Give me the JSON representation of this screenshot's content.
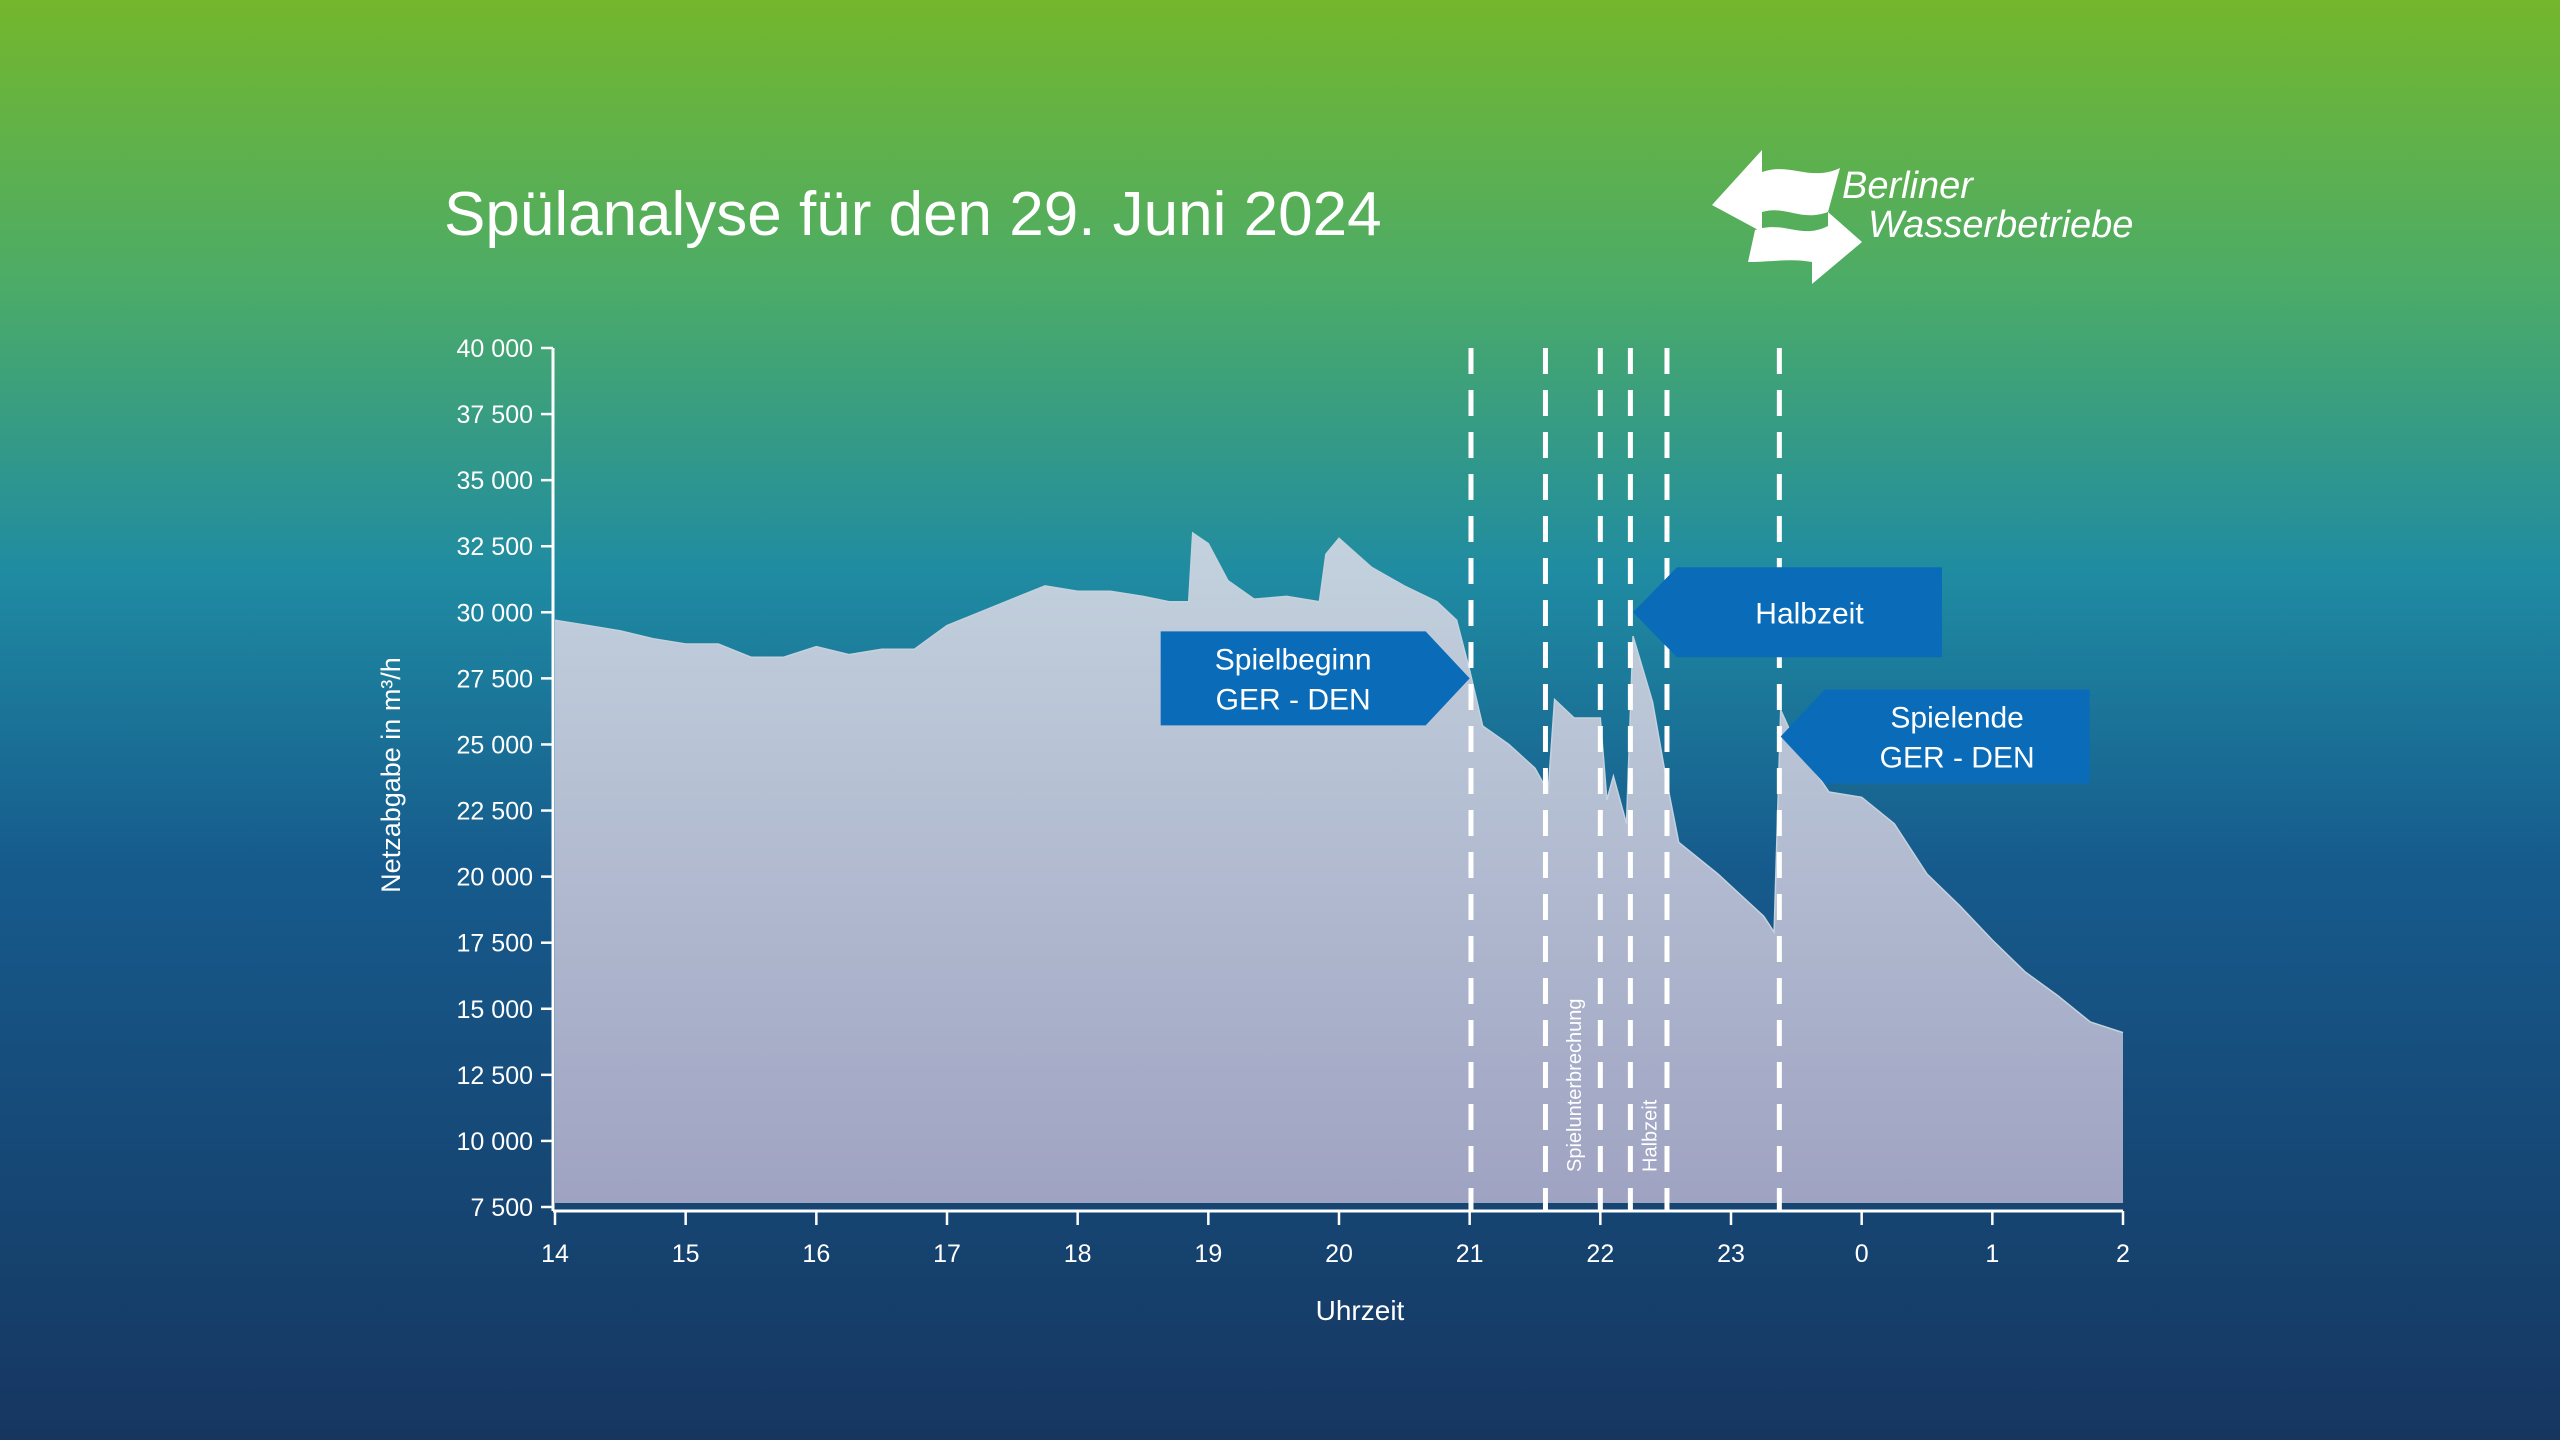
{
  "chart_data": {
    "type": "area",
    "title": "Spülanalyse für den 29. Juni 2024",
    "logo": [
      "Berliner",
      "Wasserbetriebe"
    ],
    "xlabel": "Uhrzeit",
    "ylabel": "Netzabgabe in m³/h",
    "x": [
      14,
      14.25,
      14.5,
      14.75,
      15,
      15.25,
      15.5,
      15.75,
      16,
      16.25,
      16.5,
      16.75,
      17,
      17.25,
      17.5,
      17.75,
      18,
      18.25,
      18.5,
      18.7,
      18.85,
      18.88,
      19,
      19.15,
      19.35,
      19.6,
      19.85,
      19.9,
      20,
      20.25,
      20.5,
      20.75,
      20.9,
      21,
      21.1,
      21.3,
      21.5,
      21.6,
      21.65,
      21.8,
      22,
      22.05,
      22.1,
      22.2,
      22.25,
      22.4,
      22.5,
      22.6,
      22.9,
      23.25,
      23.33,
      23.38,
      23.5,
      23.75,
      24,
      24.25,
      24.5,
      24.75,
      25,
      25.25,
      25.5,
      25.75,
      26
    ],
    "values": [
      29700,
      29500,
      29300,
      29000,
      28800,
      28800,
      28300,
      28300,
      28700,
      28400,
      28600,
      28600,
      29500,
      30000,
      30500,
      31000,
      30800,
      30800,
      30600,
      30400,
      30400,
      33000,
      32600,
      31200,
      30500,
      30600,
      30400,
      32200,
      32800,
      31700,
      31000,
      30400,
      29700,
      27800,
      25700,
      25000,
      24100,
      23200,
      26700,
      26000,
      26000,
      22900,
      23800,
      22000,
      29100,
      26600,
      23800,
      21300,
      20100,
      18500,
      17900,
      26300,
      25000,
      23200,
      23000,
      22000,
      20100,
      18900,
      17600,
      16400,
      15500,
      14500,
      14100
    ],
    "xlim": [
      14,
      26
    ],
    "xticks": [
      14,
      15,
      16,
      17,
      18,
      19,
      20,
      21,
      22,
      23,
      {
        "value": 24,
        "label": "0"
      },
      {
        "value": 25,
        "label": "1"
      },
      {
        "value": 26,
        "label": "2"
      }
    ],
    "ylim": [
      7500,
      40000
    ],
    "yticks": [
      {
        "value": 7500,
        "label": "7 500"
      },
      {
        "value": 10000,
        "label": "10 000"
      },
      {
        "value": 12500,
        "label": "12 500"
      },
      {
        "value": 15000,
        "label": "15 000"
      },
      {
        "value": 17500,
        "label": "17 500"
      },
      {
        "value": 20000,
        "label": "20 000"
      },
      {
        "value": 22500,
        "label": "22 500"
      },
      {
        "value": 25000,
        "label": "25 000"
      },
      {
        "value": 27500,
        "label": "27 500"
      },
      {
        "value": 30000,
        "label": "30 000"
      },
      {
        "value": 32500,
        "label": "32 500"
      },
      {
        "value": 35000,
        "label": "35 000"
      },
      {
        "value": 37500,
        "label": "37 500"
      },
      {
        "value": 40000,
        "label": "40 000"
      }
    ],
    "markers": [
      21.01,
      21.58,
      22.0,
      22.23,
      22.51,
      23.37
    ],
    "marker_labels": [
      {
        "text": "Spielunterbrechung",
        "between": [
          1,
          2
        ]
      },
      {
        "text": "Halbzeit",
        "between": [
          3,
          4
        ]
      }
    ],
    "callouts": [
      {
        "lines": [
          "Spielbeginn",
          "GER - DEN"
        ],
        "x": 21.0,
        "y": 27500,
        "direction": "right"
      },
      {
        "lines": [
          "Halbzeit"
        ],
        "x": 22.25,
        "y": 30000,
        "direction": "left"
      },
      {
        "lines": [
          "Spielende",
          "GER - DEN"
        ],
        "x": 23.38,
        "y": 25300,
        "direction": "left"
      }
    ],
    "callout_color": "#0a6bb8"
  }
}
